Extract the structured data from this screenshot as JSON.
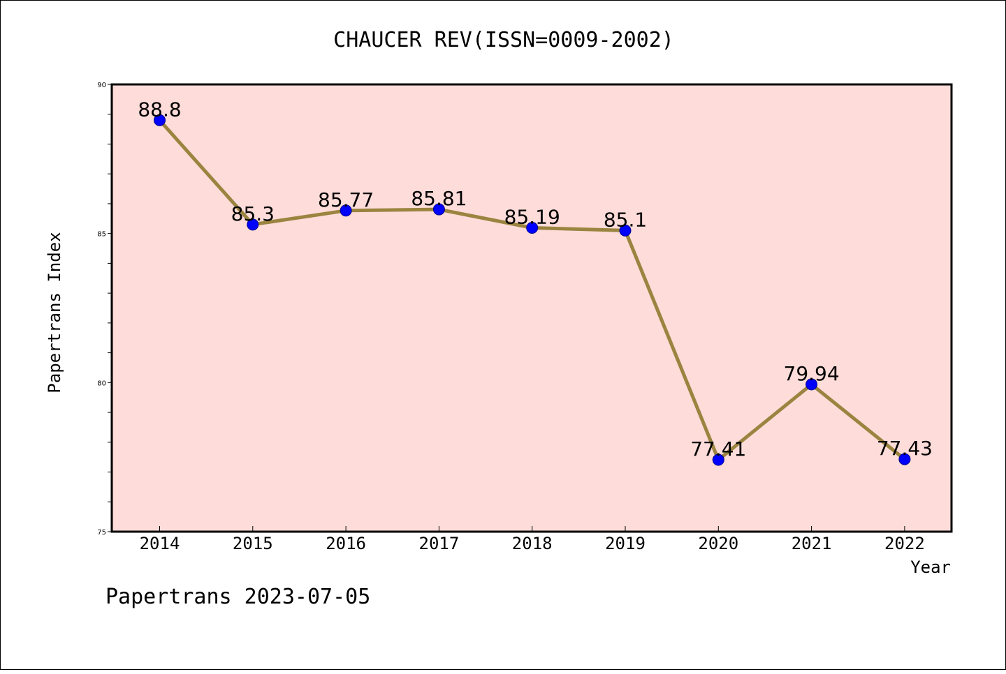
{
  "chart_data": {
    "type": "line",
    "title": "CHAUCER REV(ISSN=0009-2002)",
    "xlabel": "Year",
    "ylabel": "Papertrans Index",
    "categories": [
      "2014",
      "2015",
      "2016",
      "2017",
      "2018",
      "2019",
      "2020",
      "2021",
      "2022"
    ],
    "values": [
      88.8,
      85.3,
      85.77,
      85.81,
      85.19,
      85.1,
      77.41,
      79.94,
      77.43
    ],
    "data_labels": [
      "88.8",
      "85.3",
      "85.77",
      "85.81",
      "85.19",
      "85.1",
      "77.41",
      "79.94",
      "77.43"
    ],
    "ylim": [
      75,
      90
    ],
    "yticks": [
      75,
      80,
      85,
      90
    ],
    "grid": false,
    "legend": "none",
    "plot_background": "#fddcd9",
    "line_color": "#9a8440",
    "marker_color": "#0000ff"
  },
  "footer": {
    "text": "Papertrans 2023-07-05"
  }
}
